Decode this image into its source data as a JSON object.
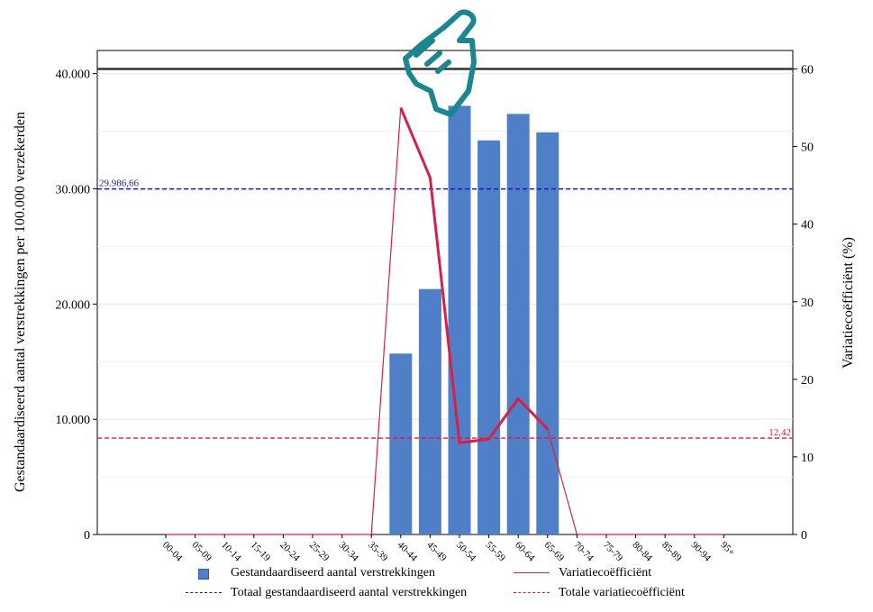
{
  "chart_data": {
    "type": "bar",
    "categories": [
      "00-04",
      "05-09",
      "10-14",
      "15-19",
      "20-24",
      "25-29",
      "30-34",
      "35-39",
      "40-44",
      "45-49",
      "50-54",
      "55-59",
      "60-64",
      "65-69",
      "70-74",
      "75-79",
      "80-84",
      "85-89",
      "90-94",
      "95+"
    ],
    "series": [
      {
        "name": "Gestandaardiseerd aantal verstrekkingen",
        "type": "bar",
        "axis": "left",
        "color": "#4F7FC6",
        "values": [
          0,
          0,
          0,
          0,
          0,
          0,
          0,
          0,
          15700,
          21300,
          37200,
          34200,
          36500,
          34900,
          0,
          0,
          0,
          0,
          0,
          0
        ]
      },
      {
        "name": "Variatiecoëfficiënt",
        "type": "line",
        "axis": "right",
        "color": "#D61F49",
        "values": [
          0,
          0,
          0,
          0,
          0,
          0,
          0,
          0,
          55,
          46,
          11.8,
          12.3,
          17.5,
          13.6,
          0,
          0,
          0,
          0,
          0,
          0
        ]
      }
    ],
    "reference_lines": [
      {
        "name": "Totaal gestandaardiseerd aantal verstrekkingen",
        "axis": "left",
        "value": 29986.66,
        "label": "29.986,66",
        "color": "#1A1AAA",
        "style": "dashed"
      },
      {
        "name": "Totale variatiecoëfficiënt",
        "axis": "right",
        "value": 12.42,
        "label": "12,42",
        "color": "#D61F49",
        "style": "dashed"
      }
    ],
    "ylabel": "Gestandaardiseerd aantal verstrekkingen per 100.000 verzekerden",
    "y2label": "Variatiecoëfficiënt (%)",
    "ylim": [
      0,
      40400
    ],
    "y2lim": [
      0,
      60
    ],
    "yticks": [
      0,
      10000,
      20000,
      30000,
      40000
    ],
    "ytick_labels": [
      "0",
      "10.000",
      "20.000",
      "30.000",
      "40.000"
    ],
    "y2ticks": [
      0,
      10,
      20,
      30,
      40,
      50,
      60
    ],
    "y2tick_labels": [
      "0",
      "10",
      "20",
      "30",
      "40",
      "50",
      "60"
    ],
    "grid": true,
    "legend_position": "bottom"
  },
  "legend": {
    "bar_label": "Gestandaardiseerd aantal verstrekkingen",
    "line_label": "Variatiecoëfficiënt",
    "total_label": "Totaal gestandaardiseerd aantal verstrekkingen",
    "total_cv_label": "Totale variatiecoëfficiënt"
  },
  "icons": {
    "pointer": "pointing-hand-icon",
    "pointer_color": "#1B8590"
  }
}
